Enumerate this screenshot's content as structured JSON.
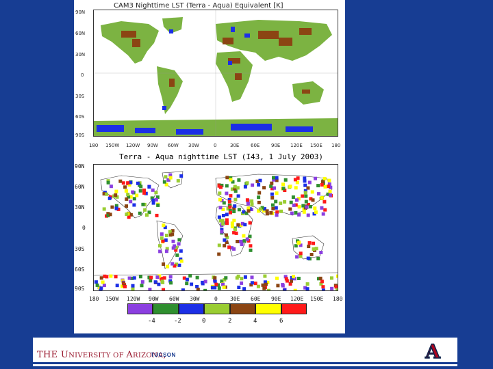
{
  "top_map": {
    "title": "CAM3 Nighttime LST (Terra - Aqua) Equivalent [K]",
    "lat_ticks": [
      "90N",
      "60N",
      "30N",
      "0",
      "30S",
      "60S",
      "90S"
    ],
    "lon_ticks": [
      "180",
      "150W",
      "120W",
      "90W",
      "60W",
      "30W",
      "0",
      "30E",
      "60E",
      "90E",
      "120E",
      "150E",
      "180"
    ]
  },
  "bottom_map": {
    "title": "Terra - Aqua nighttime LST (I43, 1 July 2003)",
    "lat_ticks": [
      "90N",
      "60N",
      "30N",
      "0",
      "30S",
      "60S",
      "90S"
    ],
    "lon_ticks": [
      "180",
      "150W",
      "120W",
      "90W",
      "60W",
      "30W",
      "0",
      "30E",
      "60E",
      "90E",
      "120E",
      "150E",
      "180"
    ]
  },
  "colorbar": {
    "colors": [
      "#8b3fe0",
      "#2f8f2f",
      "#1c2fe6",
      "#9acd32",
      "#8b4513",
      "#ffff00",
      "#ff1a1a"
    ],
    "labels": [
      "-4",
      "-2",
      "0",
      "2",
      "4",
      "6"
    ]
  },
  "footer": {
    "university_the": "THE ",
    "university_u": "U",
    "university_niversity": "NIVERSITY OF ",
    "university_a": "A",
    "university_rizona": "RIZONA",
    "university_comma": ",",
    "city": "TUCSON",
    "logo_letter": "A"
  }
}
